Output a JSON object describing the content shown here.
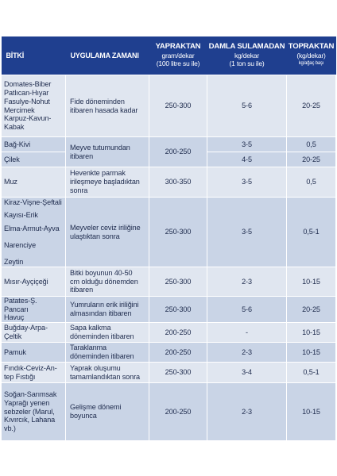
{
  "header": {
    "crop": "BİTKİ",
    "application": "UYGULAMA ZAMANI",
    "leaf": {
      "title": "YAPRAKTAN",
      "unit": "gram/dekar",
      "note": "(100 litre su ile)"
    },
    "drip": {
      "title": "DAMLA SULAMADAN",
      "unit": "kg/dekar",
      "note": "(1 ton su ile)"
    },
    "soil": {
      "title": "TOPRAKTAN",
      "unit": "(kg/dekar)",
      "note": "kg/ağaç başı"
    }
  },
  "rows": [
    {
      "crops": [
        "Domates-Biber",
        "Patlıcan-Hıyar",
        "Fasulye-Nohut",
        "Mercimek",
        "Karpuz-Kavun-",
        "Kabak"
      ],
      "application": [
        "Fide döneminden",
        "itibaren hasada kadar"
      ],
      "leaf": "250-300",
      "drip": "5-6",
      "soil": "20-25"
    },
    {
      "crops": [
        "Bağ-Kivi"
      ],
      "application": [
        "Meyve tutumundan",
        "itibaren"
      ],
      "leaf": "200-250",
      "drip": "3-5",
      "soil": "0,5"
    },
    {
      "crops": [
        "Çilek"
      ],
      "drip": "4-5",
      "soil": "20-25"
    },
    {
      "crops": [
        "Muz"
      ],
      "application": [
        "Hevenkte parmak",
        "irileşmeye başladıktan",
        "sonra"
      ],
      "leaf": "300-350",
      "drip": "3-5",
      "soil": "0,5"
    },
    {
      "crops": [
        "Kiraz-Vişne-Şeftali",
        "Kayısı-Erik",
        "Elma-Armut-Ayva",
        "Narenciye",
        "Zeytin"
      ],
      "application": [
        "Meyveler ceviz iriliğine",
        "ulaştıktan sonra"
      ],
      "leaf": "250-300",
      "drip": "3-5",
      "soil": "0,5-1"
    },
    {
      "crops": [
        "Mısır-Ayçiçeği"
      ],
      "application": [
        "Bitki boyunun 40-50",
        "cm olduğu dönemden",
        "itibaren"
      ],
      "leaf": "250-300",
      "drip": "2-3",
      "soil": "10-15"
    },
    {
      "crops": [
        "Patates-Ş. Pancarı",
        "Havuç"
      ],
      "application": [
        "Yumruların erik iriliğini",
        "almasından itibaren"
      ],
      "leaf": "250-300",
      "drip": "5-6",
      "soil": "20-25"
    },
    {
      "crops": [
        "Buğday-Arpa-",
        "Çeltik"
      ],
      "application": [
        "Sapa kalkma",
        "döneminden itibaren"
      ],
      "leaf": "200-250",
      "drip": "-",
      "soil": "10-15"
    },
    {
      "crops": [
        "Pamuk"
      ],
      "application": [
        "Taraklanma",
        "döneminden itibaren"
      ],
      "leaf": "200-250",
      "drip": "2-3",
      "soil": "10-15"
    },
    {
      "crops": [
        "Fındık-Ceviz-An-",
        "tep Fıstığı"
      ],
      "application": [
        "Yaprak oluşumu",
        "tamamlandıktan sonra"
      ],
      "leaf": "250-300",
      "drip": "3-4",
      "soil": "0,5-1"
    },
    {
      "crops": [
        "Soğan-Sarımsak",
        "Yaprağı yenen",
        "sebzeler (Marul,",
        "Kıvırcık, Lahana",
        "vb.)"
      ],
      "application": [
        "Gelişme dönemi",
        "boyunca"
      ],
      "leaf": "200-250",
      "drip": "2-3",
      "soil": "10-15"
    }
  ]
}
